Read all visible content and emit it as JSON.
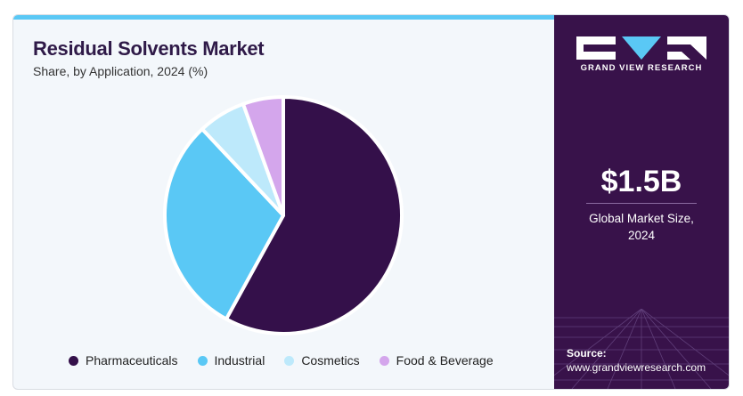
{
  "header": {
    "title": "Residual Solvents Market",
    "subtitle": "Share, by Application, 2024 (%)"
  },
  "brand": {
    "name": "GRAND VIEW RESEARCH"
  },
  "summary": {
    "value": "$1.5B",
    "label_line1": "Global Market Size,",
    "label_line2": "2024"
  },
  "source": {
    "label": "Source:",
    "url": "www.grandviewresearch.com"
  },
  "colors": {
    "brand_dark": "#38124a",
    "accent": "#5ac8f5"
  },
  "chart_data": {
    "type": "pie",
    "title": "Residual Solvents Market",
    "subtitle": "Share, by Application, 2024 (%)",
    "legend_position": "bottom",
    "slices": [
      {
        "label": "Pharmaceuticals",
        "value": 58,
        "color": "#34104a"
      },
      {
        "label": "Industrial",
        "value": 30,
        "color": "#5ac8f5"
      },
      {
        "label": "Cosmetics",
        "value": 6.5,
        "color": "#bde9fb"
      },
      {
        "label": "Food & Beverage",
        "value": 5.5,
        "color": "#d4a6ec"
      }
    ]
  }
}
